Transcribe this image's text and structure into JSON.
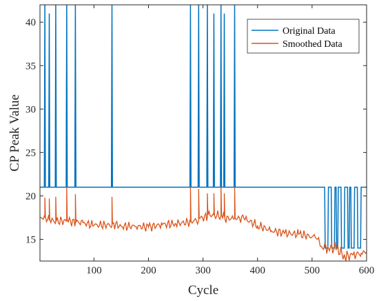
{
  "chart_data": {
    "type": "line",
    "xlabel": "Cycle",
    "ylabel": "CP Peak Value",
    "xlim": [
      1,
      600
    ],
    "ylim": [
      12.5,
      42
    ],
    "xticks": [
      100,
      200,
      300,
      400,
      500,
      600
    ],
    "yticks": [
      15,
      20,
      25,
      30,
      35,
      40
    ],
    "grid": false,
    "legend_position": "top-right",
    "series": [
      {
        "name": "Original Data",
        "color": "#0072BD",
        "baseline": 21,
        "spikes": [
          {
            "x": 10,
            "y": 42
          },
          {
            "x": 18,
            "y": 41
          },
          {
            "x": 30,
            "y": 42
          },
          {
            "x": 50,
            "y": 42
          },
          {
            "x": 66,
            "y": 42
          },
          {
            "x": 133,
            "y": 42
          },
          {
            "x": 277,
            "y": 42
          },
          {
            "x": 292,
            "y": 42
          },
          {
            "x": 308,
            "y": 42
          },
          {
            "x": 320,
            "y": 41
          },
          {
            "x": 333,
            "y": 42
          },
          {
            "x": 339,
            "y": 41
          },
          {
            "x": 358,
            "y": 42
          }
        ],
        "tail_from": 512,
        "tail_low": 14,
        "tail_high": 21
      },
      {
        "name": "Smoothed Data",
        "color": "#D95319",
        "points": [
          [
            1,
            17.5
          ],
          [
            10,
            17.5
          ],
          [
            10,
            19.8
          ],
          [
            11,
            17.6
          ],
          [
            18,
            17.2
          ],
          [
            18,
            19.7
          ],
          [
            19,
            17.3
          ],
          [
            30,
            17.0
          ],
          [
            30,
            19.9
          ],
          [
            31,
            17.1
          ],
          [
            50,
            17.1
          ],
          [
            50,
            21.0
          ],
          [
            51,
            17.2
          ],
          [
            66,
            16.9
          ],
          [
            66,
            20.2
          ],
          [
            67,
            17.0
          ],
          [
            80,
            16.9
          ],
          [
            100,
            16.6
          ],
          [
            120,
            16.7
          ],
          [
            133,
            16.6
          ],
          [
            133,
            19.9
          ],
          [
            134,
            16.8
          ],
          [
            150,
            16.5
          ],
          [
            175,
            16.5
          ],
          [
            200,
            16.4
          ],
          [
            225,
            16.7
          ],
          [
            250,
            16.8
          ],
          [
            277,
            17.0
          ],
          [
            277,
            21.0
          ],
          [
            278,
            17.1
          ],
          [
            292,
            17.2
          ],
          [
            292,
            20.8
          ],
          [
            293,
            17.4
          ],
          [
            308,
            17.6
          ],
          [
            308,
            20.3
          ],
          [
            309,
            17.8
          ],
          [
            320,
            17.8
          ],
          [
            320,
            20.3
          ],
          [
            321,
            17.8
          ],
          [
            333,
            17.7
          ],
          [
            333,
            21.0
          ],
          [
            334,
            17.8
          ],
          [
            339,
            17.6
          ],
          [
            339,
            20.3
          ],
          [
            340,
            17.4
          ],
          [
            358,
            17.4
          ],
          [
            358,
            21.0
          ],
          [
            359,
            17.4
          ],
          [
            375,
            17.4
          ],
          [
            400,
            16.6
          ],
          [
            425,
            16.0
          ],
          [
            450,
            15.7
          ],
          [
            475,
            15.6
          ],
          [
            500,
            15.3
          ],
          [
            512,
            15.2
          ],
          [
            515,
            14.2
          ],
          [
            530,
            14.0
          ],
          [
            545,
            14.0
          ],
          [
            560,
            13.0
          ],
          [
            575,
            13.2
          ],
          [
            590,
            13.4
          ],
          [
            600,
            13.5
          ]
        ]
      }
    ]
  }
}
